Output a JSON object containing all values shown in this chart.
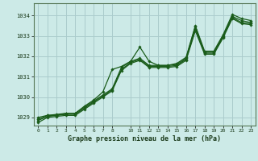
{
  "background_color": "#cceae7",
  "grid_color": "#aacccc",
  "line_color": "#1a5c1a",
  "marker_color": "#1a5c1a",
  "xlabel": "Graphe pression niveau de la mer (hPa)",
  "xlim": [
    -0.5,
    23.5
  ],
  "ylim": [
    1028.6,
    1034.6
  ],
  "yticks": [
    1029,
    1030,
    1031,
    1032,
    1033,
    1034
  ],
  "xticks": [
    0,
    1,
    2,
    3,
    4,
    5,
    6,
    7,
    8,
    10,
    11,
    12,
    13,
    14,
    15,
    16,
    17,
    18,
    19,
    20,
    21,
    22,
    23
  ],
  "series": [
    [
      1029.0,
      1029.1,
      1029.1,
      1029.2,
      1029.2,
      1029.55,
      1029.85,
      1030.25,
      1031.35,
      1031.5,
      1031.75,
      1032.45,
      1031.75,
      1031.55,
      1031.55,
      1031.65,
      1031.95,
      1033.5,
      1032.25,
      1032.25,
      1033.05,
      1034.05,
      1033.85,
      1033.75
    ],
    [
      1028.9,
      1029.1,
      1029.15,
      1029.2,
      1029.2,
      1029.5,
      1029.8,
      1030.1,
      1030.4,
      1031.45,
      1031.75,
      1031.9,
      1031.55,
      1031.55,
      1031.55,
      1031.6,
      1031.9,
      1033.45,
      1032.2,
      1032.2,
      1033.0,
      1033.95,
      1033.75,
      1033.65
    ],
    [
      1028.85,
      1029.05,
      1029.1,
      1029.15,
      1029.15,
      1029.45,
      1029.75,
      1030.05,
      1030.35,
      1031.35,
      1031.7,
      1031.85,
      1031.5,
      1031.5,
      1031.5,
      1031.55,
      1031.85,
      1033.35,
      1032.15,
      1032.15,
      1032.95,
      1033.9,
      1033.65,
      1033.6
    ],
    [
      1028.75,
      1029.0,
      1029.05,
      1029.1,
      1029.1,
      1029.4,
      1029.7,
      1030.0,
      1030.3,
      1031.3,
      1031.65,
      1031.8,
      1031.45,
      1031.45,
      1031.45,
      1031.5,
      1031.8,
      1033.25,
      1032.1,
      1032.1,
      1032.9,
      1033.85,
      1033.6,
      1033.55
    ]
  ]
}
